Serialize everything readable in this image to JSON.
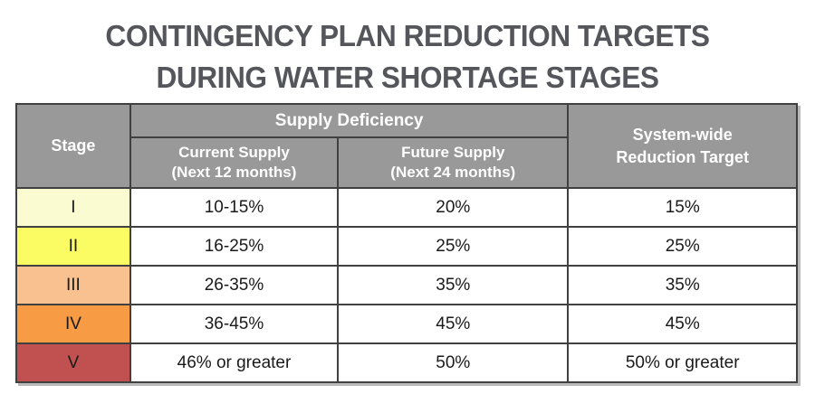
{
  "title": {
    "line1": "CONTINGENCY PLAN REDUCTION TARGETS",
    "line2": "DURING WATER SHORTAGE STAGES"
  },
  "table": {
    "headers": {
      "stage": "Stage",
      "supply_deficiency": "Supply Deficiency",
      "current_supply_line1": "Current Supply",
      "current_supply_line2": "(Next 12 months)",
      "future_supply_line1": "Future Supply",
      "future_supply_line2": "(Next 24 months)",
      "system_wide_line1": "System-wide",
      "system_wide_line2": "Reduction Target"
    },
    "rows": [
      {
        "stage": "I",
        "stage_color": "#FBFBD2",
        "current": "10-15%",
        "future": "20%",
        "target": "15%"
      },
      {
        "stage": "II",
        "stage_color": "#FBFB63",
        "current": "16-25%",
        "future": "25%",
        "target": "25%"
      },
      {
        "stage": "III",
        "stage_color": "#F8C18F",
        "current": "26-35%",
        "future": "35%",
        "target": "35%"
      },
      {
        "stage": "IV",
        "stage_color": "#F79B45",
        "current": "36-45%",
        "future": "45%",
        "target": "45%"
      },
      {
        "stage": "V",
        "stage_color": "#C05150",
        "current": "46% or greater",
        "future": "50%",
        "target": "50% or greater"
      }
    ]
  },
  "colors": {
    "header_bg": "#999999",
    "header_text": "#FFFFFF",
    "title_text": "#54565B",
    "border": "#404040",
    "body_text": "#1a1a1a"
  },
  "chart_data": {
    "type": "table",
    "title": "CONTINGENCY PLAN REDUCTION TARGETS DURING WATER SHORTAGE STAGES",
    "column_groups": [
      {
        "label": "Supply Deficiency",
        "spans": [
          "Current Supply (Next 12 months)",
          "Future Supply (Next 24 months)"
        ]
      }
    ],
    "columns": [
      "Stage",
      "Current Supply (Next 12 months)",
      "Future Supply (Next 24 months)",
      "System-wide Reduction Target"
    ],
    "rows": [
      [
        "I",
        "10-15%",
        "20%",
        "15%"
      ],
      [
        "II",
        "16-25%",
        "25%",
        "25%"
      ],
      [
        "III",
        "26-35%",
        "35%",
        "35%"
      ],
      [
        "IV",
        "36-45%",
        "45%",
        "45%"
      ],
      [
        "V",
        "46% or greater",
        "50%",
        "50% or greater"
      ]
    ],
    "row_colors": [
      "#FBFBD2",
      "#FBFB63",
      "#F8C18F",
      "#F79B45",
      "#C05150"
    ]
  }
}
